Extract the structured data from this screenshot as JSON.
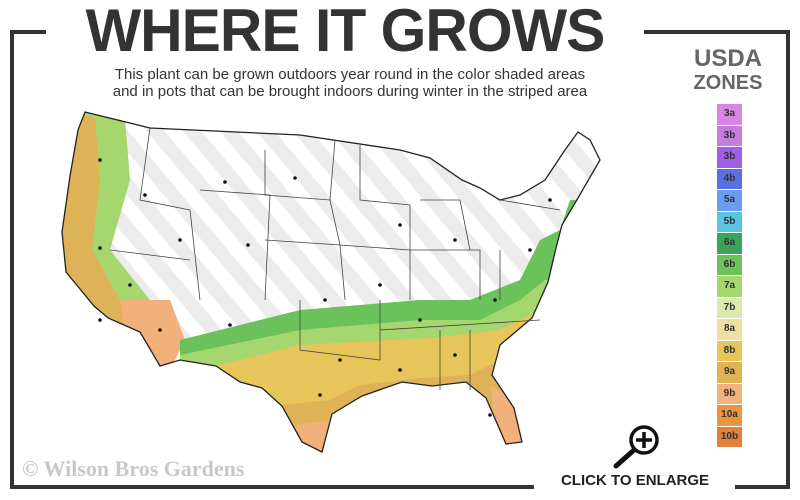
{
  "header": {
    "title": "WHERE IT GROWS",
    "subtitle_line1": "This plant can be grown outdoors year round in the color shaded areas",
    "subtitle_line2": "and in pots that can be brought indoors during winter in the striped area"
  },
  "legend": {
    "title_line1": "USDA",
    "title_line2": "ZONES",
    "zones": [
      {
        "label": "3a",
        "color": "#d986e3"
      },
      {
        "label": "3b",
        "color": "#c47ddc"
      },
      {
        "label": "3b",
        "color": "#a05fe6"
      },
      {
        "label": "4b",
        "color": "#5b6fe0"
      },
      {
        "label": "5a",
        "color": "#6c9cf0"
      },
      {
        "label": "5b",
        "color": "#5bc5e0"
      },
      {
        "label": "6a",
        "color": "#3aa55a"
      },
      {
        "label": "6b",
        "color": "#6cc25a"
      },
      {
        "label": "7a",
        "color": "#a6d66e"
      },
      {
        "label": "7b",
        "color": "#dbe8b0"
      },
      {
        "label": "8a",
        "color": "#efe0a0"
      },
      {
        "label": "8b",
        "color": "#e8c55a"
      },
      {
        "label": "9a",
        "color": "#deb257"
      },
      {
        "label": "9b",
        "color": "#f2b07a"
      },
      {
        "label": "10a",
        "color": "#eb9540"
      },
      {
        "label": "10b",
        "color": "#e0823a"
      }
    ]
  },
  "footer": {
    "copyright": "© Wilson Bros Gardens",
    "enlarge_label": "CLICK TO ENLARGE",
    "enlarge_icon": "magnifier-plus-icon"
  }
}
